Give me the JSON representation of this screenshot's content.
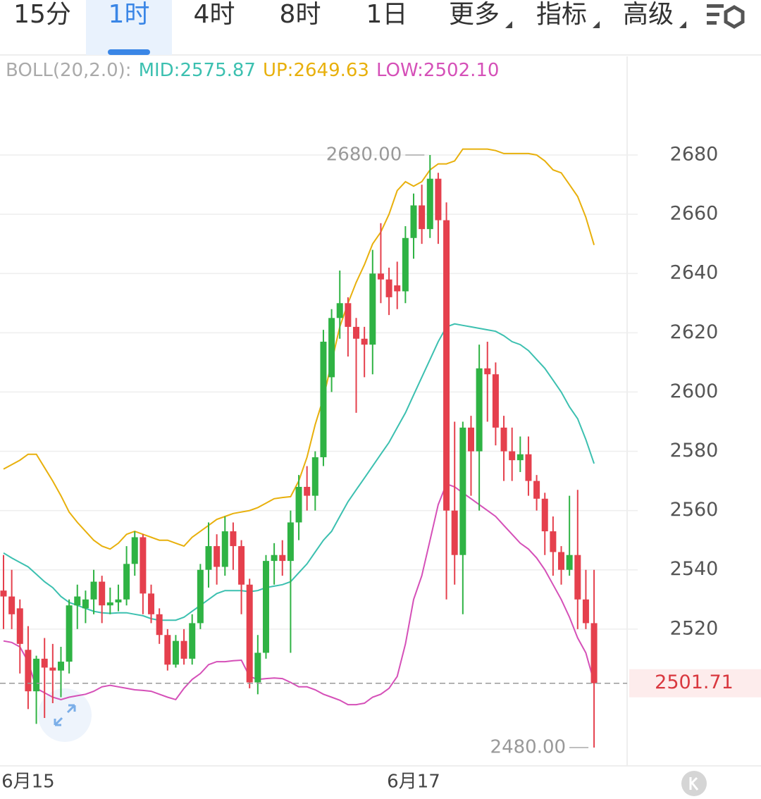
{
  "tabs": [
    {
      "label": "15分",
      "dropdown": false
    },
    {
      "label": "1时",
      "dropdown": false
    },
    {
      "label": "4时",
      "dropdown": false
    },
    {
      "label": "8时",
      "dropdown": false
    },
    {
      "label": "1日",
      "dropdown": false
    },
    {
      "label": "更多",
      "dropdown": true
    },
    {
      "label": "指标",
      "dropdown": true
    },
    {
      "label": "高级",
      "dropdown": true
    }
  ],
  "selected_tab": 1,
  "chart_data": {
    "type": "candlestick",
    "legend": {
      "indicator": "BOLL(20,2.0):",
      "items": [
        {
          "text": "MID:2575.87",
          "color": "#3cc0b0"
        },
        {
          "text": "UP:2649.63",
          "color": "#e8b00c"
        },
        {
          "text": "LOW:2502.10",
          "color": "#d550b8"
        }
      ]
    },
    "categories": [
      null,
      null,
      null,
      "6月15",
      null,
      null,
      null,
      null,
      null,
      null,
      null,
      null,
      null,
      null,
      null,
      null,
      null,
      null,
      null,
      null,
      null,
      null,
      null,
      null,
      null,
      null,
      null,
      null,
      null,
      null,
      null,
      null,
      null,
      null,
      null,
      null,
      null,
      null,
      null,
      null,
      null,
      null,
      null,
      null,
      null,
      null,
      null,
      null,
      null,
      null,
      "6月17",
      null,
      null,
      null,
      null,
      null,
      null,
      null,
      null,
      null,
      null,
      null,
      null,
      null,
      null,
      null,
      null,
      null,
      null,
      null,
      null,
      null,
      null
    ],
    "open": [
      2533,
      2531,
      2527,
      2513,
      2499,
      2510,
      2507,
      2506,
      2509,
      2528,
      2527,
      2530,
      2536,
      2528,
      2529,
      2530,
      2542,
      2551,
      2532,
      2525,
      2518,
      2508,
      2516,
      2510,
      2522,
      2540,
      2548,
      2541,
      2553,
      2548,
      2535,
      2502,
      2512,
      2543,
      2545,
      2543,
      2556,
      2568,
      2565,
      2578,
      2605,
      2625,
      2630,
      2622,
      2618,
      2616,
      2640,
      2638,
      2636,
      2634,
      2652,
      2663,
      2655,
      2672,
      2658,
      2560,
      2545,
      2588,
      2580,
      2608,
      2606,
      2588,
      2580,
      2577,
      2579,
      2570,
      2564,
      2553,
      2546,
      2540,
      2545,
      2530,
      2522
    ],
    "high": [
      2545,
      2540,
      2530,
      2521,
      2511,
      2517,
      2515,
      2514,
      2530,
      2535,
      2533,
      2540,
      2538,
      2534,
      2535,
      2548,
      2553,
      2552,
      2535,
      2527,
      2520,
      2518,
      2520,
      2525,
      2542,
      2556,
      2552,
      2558,
      2556,
      2550,
      2537,
      2518,
      2545,
      2549,
      2550,
      2560,
      2572,
      2575,
      2580,
      2621,
      2628,
      2641,
      2632,
      2625,
      2622,
      2648,
      2657,
      2642,
      2644,
      2656,
      2667,
      2670,
      2680,
      2674,
      2664,
      2590,
      2590,
      2592,
      2616,
      2617,
      2610,
      2592,
      2588,
      2585,
      2585,
      2572,
      2566,
      2558,
      2548,
      2565,
      2567,
      2540,
      2540
    ],
    "low": [
      2520,
      2520,
      2505,
      2493,
      2488,
      2490,
      2495,
      2497,
      2505,
      2520,
      2522,
      2525,
      2522,
      2525,
      2526,
      2528,
      2538,
      2525,
      2522,
      2515,
      2506,
      2507,
      2508,
      2508,
      2520,
      2534,
      2535,
      2538,
      2540,
      2525,
      2500,
      2498,
      2510,
      2535,
      2538,
      2512,
      2550,
      2560,
      2560,
      2575,
      2600,
      2618,
      2612,
      2593,
      2605,
      2606,
      2630,
      2626,
      2628,
      2630,
      2645,
      2650,
      2652,
      2650,
      2530,
      2535,
      2525,
      2565,
      2560,
      2590,
      2582,
      2570,
      2570,
      2573,
      2565,
      2560,
      2545,
      2538,
      2535,
      2538,
      2520,
      2520,
      2480
    ],
    "close": [
      2531,
      2525,
      2515,
      2499,
      2510,
      2507,
      2506,
      2509,
      2528,
      2531,
      2530,
      2536,
      2528,
      2529,
      2530,
      2542,
      2551,
      2532,
      2525,
      2518,
      2508,
      2516,
      2510,
      2522,
      2540,
      2548,
      2541,
      2553,
      2548,
      2535,
      2502,
      2512,
      2543,
      2545,
      2543,
      2556,
      2568,
      2565,
      2578,
      2617,
      2625,
      2630,
      2622,
      2618,
      2616,
      2640,
      2638,
      2632,
      2634,
      2652,
      2663,
      2655,
      2672,
      2658,
      2560,
      2545,
      2588,
      2580,
      2608,
      2606,
      2588,
      2580,
      2577,
      2579,
      2570,
      2564,
      2553,
      2546,
      2540,
      2545,
      2530,
      2522,
      2501.71
    ],
    "up_color": "#2fb344",
    "down_color": "#e5404d",
    "series": [
      {
        "name": "UP",
        "color": "#e8b00c",
        "values": [
          2574,
          2575.5,
          2577,
          2579,
          2579,
          2574.5,
          2570,
          2565,
          2559.5,
          2556,
          2553,
          2550,
          2548,
          2547,
          2549,
          2552,
          2553,
          2552,
          2551,
          2550,
          2550,
          2549,
          2548,
          2551,
          2553,
          2555,
          2557,
          2558,
          2559,
          2559.5,
          2560,
          2561,
          2562.5,
          2564,
          2564.4,
          2564.7,
          2570,
          2578,
          2589,
          2598,
          2610,
          2622,
          2630,
          2637,
          2643,
          2650,
          2654,
          2660,
          2668,
          2671,
          2669.5,
          2671,
          2675,
          2677,
          2677,
          2678,
          2682,
          2682,
          2682,
          2682,
          2681.5,
          2680.5,
          2680.5,
          2680.5,
          2680.5,
          2680,
          2678,
          2675,
          2674,
          2670,
          2666,
          2659,
          2649.63
        ]
      },
      {
        "name": "MID",
        "color": "#3cc0b0",
        "values": [
          2545.7,
          2544,
          2542.5,
          2541,
          2538.5,
          2536,
          2534,
          2531,
          2529,
          2528,
          2527,
          2526,
          2525.5,
          2525.3,
          2525.5,
          2525.5,
          2525,
          2524.5,
          2523.5,
          2523,
          2523,
          2523,
          2524,
          2526,
          2528,
          2530,
          2532,
          2533,
          2533,
          2533,
          2532.6,
          2533,
          2534,
          2534.5,
          2535,
          2536,
          2539,
          2542,
          2546,
          2550,
          2553,
          2558,
          2563,
          2567,
          2571,
          2575,
          2579,
          2583,
          2588,
          2593,
          2599,
          2605,
          2611,
          2617,
          2622,
          2623,
          2622.5,
          2622,
          2621.5,
          2621,
          2620.5,
          2619,
          2617,
          2616,
          2614,
          2611,
          2608,
          2604,
          2600,
          2595,
          2591,
          2584,
          2575.87
        ]
      },
      {
        "name": "LOW",
        "color": "#d550b8",
        "values": [
          2516,
          2515.5,
          2514,
          2509,
          2500,
          2498.5,
          2497,
          2496.2,
          2497,
          2497.5,
          2498,
          2499,
          2500.5,
          2501,
          2500.5,
          2500,
          2499.5,
          2499.3,
          2499,
          2498,
          2497,
          2496.2,
          2500,
          2503,
          2505,
          2508,
          2509,
          2509,
          2509.3,
          2509.5,
          2504,
          2503,
          2503.3,
          2503.5,
          2503.3,
          2502,
          2500.5,
          2500.5,
          2499.5,
          2498,
          2497,
          2496,
          2494.5,
          2494.5,
          2495,
          2497,
          2498,
          2500,
          2504,
          2515,
          2530,
          2538,
          2550,
          2562,
          2569,
          2568,
          2566,
          2564,
          2562,
          2560,
          2558,
          2555,
          2552,
          2549,
          2547,
          2544,
          2540,
          2535,
          2530,
          2524,
          2517,
          2512,
          2502.1
        ]
      }
    ],
    "ylim": [
      2474.3,
      2713.3
    ],
    "yticks": [
      2520,
      2540,
      2560,
      2580,
      2600,
      2620,
      2640,
      2660,
      2680
    ],
    "grid": true,
    "annotations": [
      {
        "value": 2680,
        "label": "2680.00"
      },
      {
        "value": 2480,
        "label": "2480.00"
      }
    ],
    "last_price": 2501.71
  }
}
